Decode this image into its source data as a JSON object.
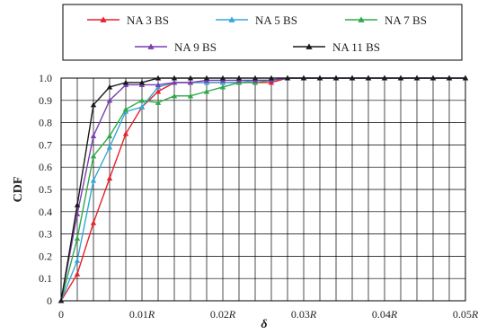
{
  "chart_data": {
    "type": "line",
    "xlabel": "δ",
    "ylabel": "CDF",
    "xlim": [
      0,
      0.05
    ],
    "ylim": [
      0,
      1
    ],
    "grid": true,
    "legend_position": "top",
    "x_tick_labels": [
      "0",
      "0.01R",
      "0.02R",
      "0.03R",
      "0.04R",
      "0.05R"
    ],
    "y_tick_labels": [
      "0",
      "0.1",
      "0.2",
      "0.3",
      "0.4",
      "0.5",
      "0.6",
      "0.7",
      "0.8",
      "0.9",
      "1.0"
    ],
    "x": [
      0,
      0.002,
      0.004,
      0.006,
      0.008,
      0.01,
      0.012,
      0.014,
      0.016,
      0.018,
      0.02,
      0.022,
      0.024,
      0.026,
      0.028,
      0.03,
      0.032,
      0.034,
      0.036,
      0.038,
      0.04,
      0.042,
      0.044,
      0.046,
      0.048,
      0.05
    ],
    "series": [
      {
        "name": "NA 3 BS",
        "color": "#e8212b",
        "marker": "triangle",
        "values": [
          0,
          0.12,
          0.35,
          0.55,
          0.75,
          0.87,
          0.94,
          0.98,
          0.98,
          0.98,
          0.98,
          0.98,
          0.98,
          0.98,
          1.0,
          1.0,
          1.0,
          1.0,
          1.0,
          1.0,
          1.0,
          1.0,
          1.0,
          1.0,
          1.0,
          1.0
        ]
      },
      {
        "name": "NA 5 BS",
        "color": "#34a8d8",
        "marker": "triangle",
        "values": [
          0,
          0.18,
          0.54,
          0.69,
          0.85,
          0.87,
          0.96,
          0.98,
          0.98,
          0.98,
          0.98,
          0.98,
          0.99,
          0.99,
          1.0,
          1.0,
          1.0,
          1.0,
          1.0,
          1.0,
          1.0,
          1.0,
          1.0,
          1.0,
          1.0,
          1.0
        ]
      },
      {
        "name": "NA 7 BS",
        "color": "#2eaa4a",
        "marker": "triangle",
        "values": [
          0,
          0.28,
          0.65,
          0.74,
          0.86,
          0.9,
          0.89,
          0.92,
          0.92,
          0.94,
          0.96,
          0.98,
          0.98,
          0.99,
          1.0,
          1.0,
          1.0,
          1.0,
          1.0,
          1.0,
          1.0,
          1.0,
          1.0,
          1.0,
          1.0,
          1.0
        ]
      },
      {
        "name": "NA 9 BS",
        "color": "#7a3fb0",
        "marker": "triangle",
        "values": [
          0,
          0.39,
          0.74,
          0.9,
          0.97,
          0.97,
          0.97,
          0.98,
          0.98,
          0.99,
          0.99,
          0.99,
          0.99,
          0.99,
          1.0,
          1.0,
          1.0,
          1.0,
          1.0,
          1.0,
          1.0,
          1.0,
          1.0,
          1.0,
          1.0,
          1.0
        ]
      },
      {
        "name": "NA 11 BS",
        "color": "#1a1a1a",
        "marker": "triangle",
        "values": [
          0,
          0.43,
          0.88,
          0.96,
          0.98,
          0.98,
          1.0,
          1.0,
          1.0,
          1.0,
          1.0,
          1.0,
          1.0,
          1.0,
          1.0,
          1.0,
          1.0,
          1.0,
          1.0,
          1.0,
          1.0,
          1.0,
          1.0,
          1.0,
          1.0,
          1.0
        ]
      }
    ]
  }
}
